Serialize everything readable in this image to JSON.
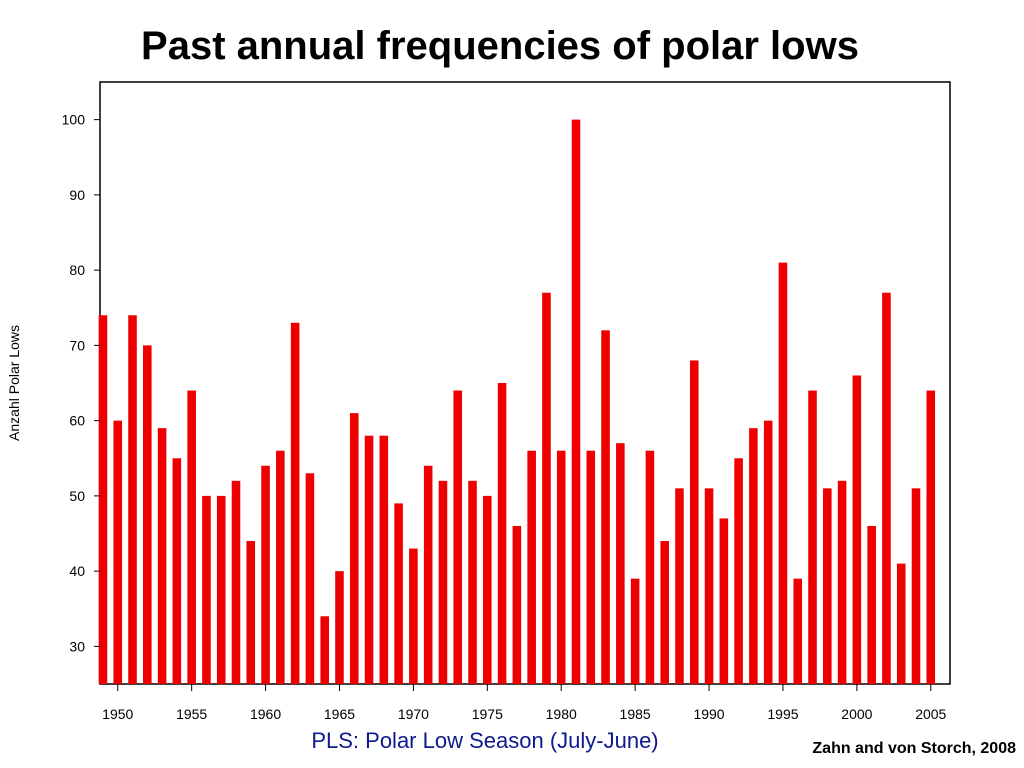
{
  "chart_data": {
    "type": "bar",
    "title": "Past annual frequencies of polar lows",
    "ylabel": "Anzahl Polar Lows",
    "xlabel": "PLS: Polar Low Season (July-June)",
    "ylim": [
      25,
      105
    ],
    "xlim": [
      1948.8,
      2006.3
    ],
    "yticks": [
      30,
      40,
      50,
      60,
      70,
      80,
      90,
      100
    ],
    "xticks": [
      1950,
      1955,
      1960,
      1965,
      1970,
      1975,
      1980,
      1985,
      1990,
      1995,
      2000,
      2005
    ],
    "grid": false,
    "bar_color": "#ee0000",
    "x": [
      1949,
      1950,
      1951,
      1952,
      1953,
      1954,
      1955,
      1956,
      1957,
      1958,
      1959,
      1960,
      1961,
      1962,
      1963,
      1964,
      1965,
      1966,
      1967,
      1968,
      1969,
      1970,
      1971,
      1972,
      1973,
      1974,
      1975,
      1976,
      1977,
      1978,
      1979,
      1980,
      1981,
      1982,
      1983,
      1984,
      1985,
      1986,
      1987,
      1988,
      1989,
      1990,
      1991,
      1992,
      1993,
      1994,
      1995,
      1996,
      1997,
      1998,
      1999,
      2000,
      2001,
      2002,
      2003,
      2004,
      2005
    ],
    "values": [
      74,
      60,
      74,
      70,
      59,
      55,
      64,
      50,
      50,
      52,
      44,
      54,
      56,
      73,
      53,
      34,
      40,
      61,
      58,
      58,
      49,
      43,
      54,
      52,
      64,
      52,
      50,
      65,
      46,
      56,
      77,
      56,
      100,
      56,
      72,
      57,
      39,
      56,
      44,
      51,
      68,
      51,
      47,
      55,
      59,
      60,
      81,
      39,
      64,
      51,
      52,
      66,
      46,
      77,
      41,
      51,
      64
    ]
  },
  "credit": "Zahn and von Storch, 2008"
}
